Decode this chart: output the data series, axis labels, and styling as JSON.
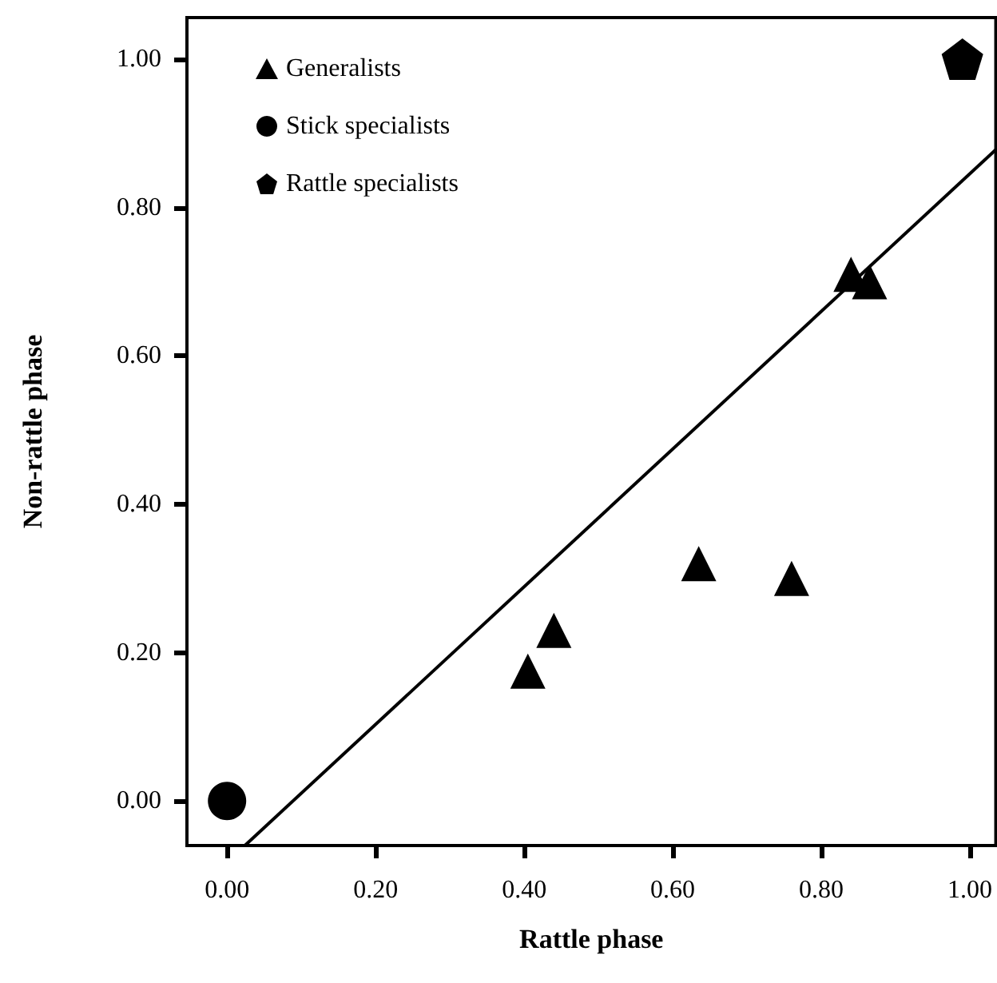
{
  "chart_data": {
    "type": "scatter",
    "xlabel": "Rattle phase",
    "ylabel": "Non-rattle phase",
    "xlim": [
      -0.054,
      1.035
    ],
    "ylim": [
      -0.06,
      1.056
    ],
    "xticks": [
      {
        "value": 0,
        "label": "0.00"
      },
      {
        "value": 0.2,
        "label": "0.20"
      },
      {
        "value": 0.4,
        "label": "0.40"
      },
      {
        "value": 0.6,
        "label": "0.60"
      },
      {
        "value": 0.8,
        "label": "0.80"
      },
      {
        "value": 1,
        "label": "1.00"
      }
    ],
    "yticks": [
      {
        "value": 0,
        "label": "0.00"
      },
      {
        "value": 0.2,
        "label": "0.20"
      },
      {
        "value": 0.4,
        "label": "0.40"
      },
      {
        "value": 0.6,
        "label": "0.60"
      },
      {
        "value": 0.8,
        "label": "0.80"
      },
      {
        "value": 1,
        "label": "1.00"
      }
    ],
    "grid": false,
    "legend": "top left",
    "series": [
      {
        "name": "Generalists",
        "color": "#000000",
        "marker": "triangle",
        "x": [
          0.405,
          0.44,
          0.635,
          0.76,
          0.84,
          0.865
        ],
        "values": [
          0.175,
          0.23,
          0.32,
          0.3,
          0.71,
          0.7
        ]
      },
      {
        "name": "Stick specialists",
        "color": "#000000",
        "marker": "circle",
        "x": [
          0.0
        ],
        "values": [
          0.0
        ]
      },
      {
        "name": "Rattle specialists",
        "color": "#000000",
        "x": [
          0.99
        ],
        "values": [
          1.0
        ]
      },
      {
        "type": "line",
        "color": "#000000",
        "marker": "none",
        "x": [
          0.024,
          1.035
        ],
        "values": [
          -0.06,
          0.878
        ]
      }
    ]
  }
}
